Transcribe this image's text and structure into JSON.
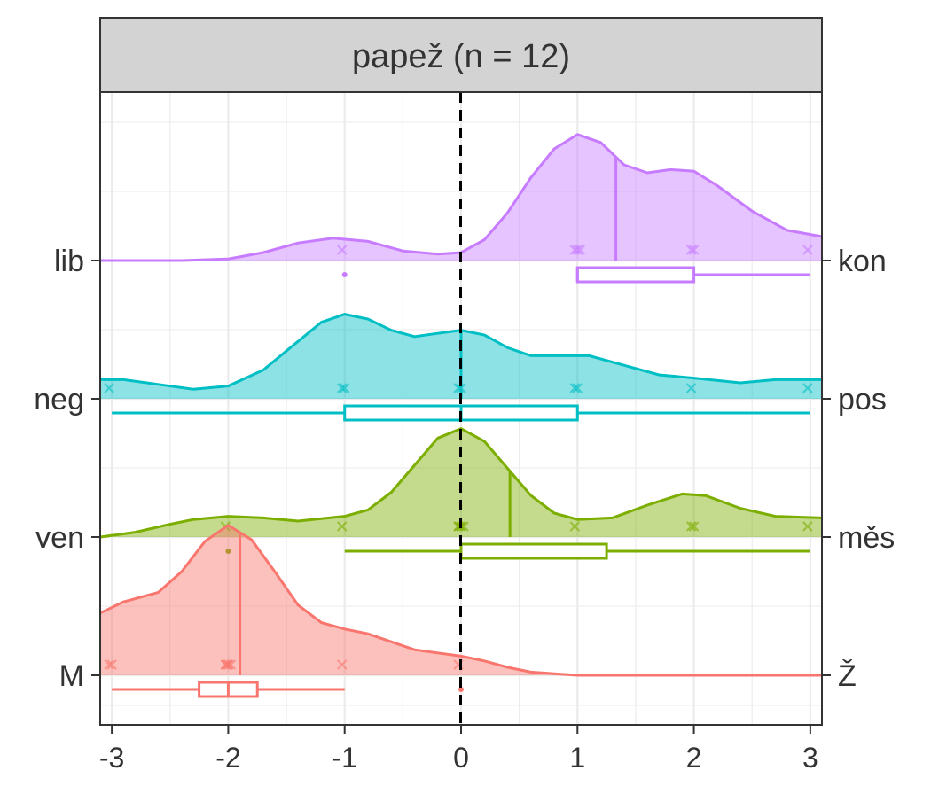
{
  "chart_data": {
    "type": "ridgeline",
    "title": "papež (n = 12)",
    "xlim": [
      -3.1,
      3.1
    ],
    "x_ticks": [
      -3,
      -2,
      -1,
      0,
      1,
      2,
      3
    ],
    "x_tick_labels": [
      "-3",
      "-2",
      "-1",
      "0",
      "1",
      "2",
      "3"
    ],
    "reference_line_x": 0,
    "grid": true,
    "series": [
      {
        "left_label": "M",
        "right_label": "Ž",
        "color": "#F8766D",
        "density": [
          [
            -3.1,
            0.39
          ],
          [
            -2.9,
            0.46
          ],
          [
            -2.6,
            0.52
          ],
          [
            -2.4,
            0.65
          ],
          [
            -2.2,
            0.84
          ],
          [
            -2.0,
            0.94
          ],
          [
            -1.8,
            0.85
          ],
          [
            -1.6,
            0.65
          ],
          [
            -1.4,
            0.44
          ],
          [
            -1.2,
            0.33
          ],
          [
            -1.0,
            0.29
          ],
          [
            -0.8,
            0.26
          ],
          [
            -0.6,
            0.21
          ],
          [
            -0.4,
            0.16
          ],
          [
            -0.2,
            0.14
          ],
          [
            0.0,
            0.12
          ],
          [
            0.2,
            0.09
          ],
          [
            0.4,
            0.05
          ],
          [
            0.6,
            0.02
          ],
          [
            1.0,
            0.0
          ],
          [
            3.1,
            0.0
          ]
        ],
        "median": -1.9,
        "points": [
          -3,
          -3,
          -2,
          -2,
          -2,
          -2,
          -2,
          -1,
          0
        ],
        "box": {
          "min": -3,
          "q1": -2.25,
          "median": -2,
          "q3": -1.75,
          "max": -1
        },
        "outliers": [
          0
        ]
      },
      {
        "left_label": "ven",
        "right_label": "měs",
        "color": "#7CAE00",
        "density": [
          [
            -3.1,
            0.0
          ],
          [
            -2.8,
            0.03
          ],
          [
            -2.5,
            0.08
          ],
          [
            -2.3,
            0.11
          ],
          [
            -2.0,
            0.13
          ],
          [
            -1.7,
            0.12
          ],
          [
            -1.4,
            0.1
          ],
          [
            -1.0,
            0.13
          ],
          [
            -0.8,
            0.17
          ],
          [
            -0.6,
            0.28
          ],
          [
            -0.4,
            0.45
          ],
          [
            -0.2,
            0.62
          ],
          [
            0.0,
            0.68
          ],
          [
            0.2,
            0.6
          ],
          [
            0.4,
            0.43
          ],
          [
            0.6,
            0.26
          ],
          [
            0.8,
            0.15
          ],
          [
            1.0,
            0.11
          ],
          [
            1.3,
            0.12
          ],
          [
            1.6,
            0.2
          ],
          [
            1.9,
            0.27
          ],
          [
            2.1,
            0.26
          ],
          [
            2.4,
            0.18
          ],
          [
            2.7,
            0.13
          ],
          [
            3.1,
            0.12
          ]
        ],
        "median": 0.42,
        "points": [
          -2,
          -1,
          0,
          0,
          0,
          0,
          0,
          1,
          2,
          2,
          3
        ],
        "box": {
          "min": -1,
          "q1": 0,
          "median": 0,
          "q3": 1.25,
          "max": 3
        },
        "outliers": [
          -2
        ]
      },
      {
        "left_label": "neg",
        "right_label": "pos",
        "color": "#00BFC4",
        "density": [
          [
            -3.1,
            0.12
          ],
          [
            -2.9,
            0.12
          ],
          [
            -2.6,
            0.09
          ],
          [
            -2.3,
            0.06
          ],
          [
            -2.0,
            0.08
          ],
          [
            -1.7,
            0.18
          ],
          [
            -1.4,
            0.36
          ],
          [
            -1.2,
            0.48
          ],
          [
            -1.0,
            0.53
          ],
          [
            -0.8,
            0.5
          ],
          [
            -0.6,
            0.43
          ],
          [
            -0.4,
            0.39
          ],
          [
            -0.2,
            0.41
          ],
          [
            0.0,
            0.43
          ],
          [
            0.2,
            0.4
          ],
          [
            0.4,
            0.32
          ],
          [
            0.6,
            0.27
          ],
          [
            0.9,
            0.27
          ],
          [
            1.1,
            0.27
          ],
          [
            1.4,
            0.21
          ],
          [
            1.7,
            0.15
          ],
          [
            2.0,
            0.13
          ],
          [
            2.4,
            0.1
          ],
          [
            2.7,
            0.12
          ],
          [
            3.1,
            0.12
          ]
        ],
        "median": 0,
        "points": [
          -3,
          -1,
          -1,
          0,
          0,
          1,
          1,
          2,
          3
        ],
        "box": {
          "min": -3,
          "q1": -1,
          "median": 0,
          "q3": 1,
          "max": 3
        },
        "outliers": []
      },
      {
        "left_label": "lib",
        "right_label": "kon",
        "color": "#C77CFF",
        "density": [
          [
            -3.1,
            0.0
          ],
          [
            -2.4,
            0.0
          ],
          [
            -2.0,
            0.01
          ],
          [
            -1.7,
            0.05
          ],
          [
            -1.4,
            0.11
          ],
          [
            -1.1,
            0.14
          ],
          [
            -0.8,
            0.12
          ],
          [
            -0.5,
            0.06
          ],
          [
            -0.2,
            0.04
          ],
          [
            0.0,
            0.05
          ],
          [
            0.2,
            0.13
          ],
          [
            0.4,
            0.3
          ],
          [
            0.6,
            0.52
          ],
          [
            0.8,
            0.7
          ],
          [
            1.0,
            0.79
          ],
          [
            1.2,
            0.74
          ],
          [
            1.4,
            0.6
          ],
          [
            1.6,
            0.55
          ],
          [
            1.8,
            0.57
          ],
          [
            2.0,
            0.56
          ],
          [
            2.2,
            0.47
          ],
          [
            2.5,
            0.31
          ],
          [
            2.8,
            0.19
          ],
          [
            3.1,
            0.15
          ]
        ],
        "median": 1.33,
        "points": [
          -1,
          1,
          1,
          1,
          2,
          2,
          3
        ],
        "box": {
          "min": 1,
          "q1": 1,
          "median": 1,
          "q3": 2,
          "max": 3
        },
        "outliers": [
          -1
        ]
      }
    ]
  }
}
